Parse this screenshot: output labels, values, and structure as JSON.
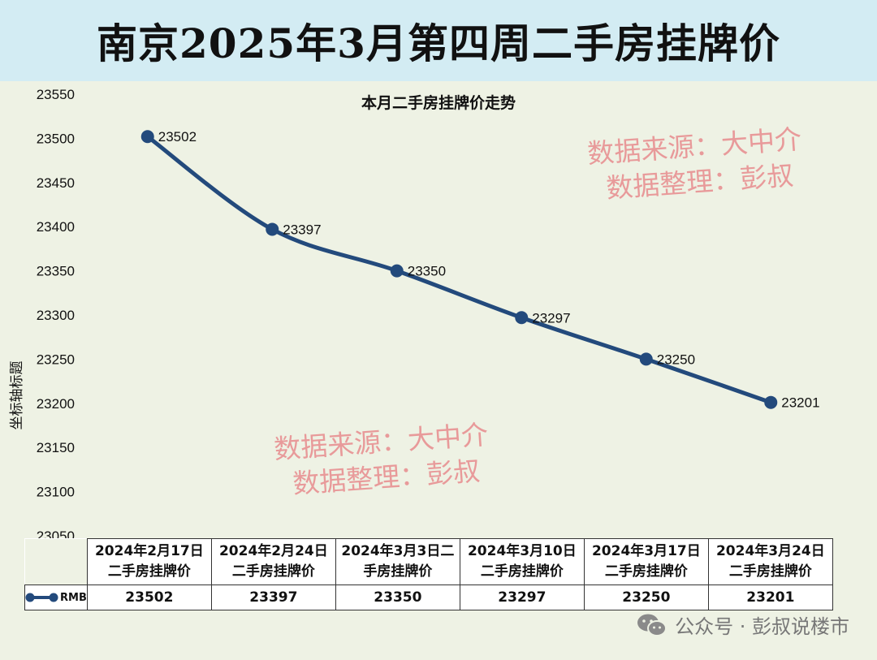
{
  "banner": {
    "title": "南京2025年3月第四周二手房挂牌价"
  },
  "watermark": {
    "line1": "数据来源：大中介",
    "line2": "数据整理：彭叔"
  },
  "footer": {
    "text": "公众号 · 彭叔说楼市",
    "icon": "wechat-icon"
  },
  "colors": {
    "series": "#234a7c",
    "banner_bg": "#d3ecf3",
    "plot_bg": "#eef2e4",
    "watermark": "#e89a9a"
  },
  "chart_data": {
    "type": "line",
    "title": "本月二手房挂牌价走势",
    "ylabel": "坐标轴标题",
    "xlabel": "",
    "ylim": [
      23050,
      23550
    ],
    "y_ticks": [
      23550,
      23500,
      23450,
      23400,
      23350,
      23300,
      23250,
      23200,
      23150,
      23100,
      23050
    ],
    "categories": [
      "2024年2月17日二手房挂牌价",
      "2024年2月24日二手房挂牌价",
      "2024年3月3日二手房挂牌价",
      "2024年3月10日二手房挂牌价",
      "2024年3月17日二手房挂牌价",
      "2024年3月24日二手房挂牌价"
    ],
    "category_lines": [
      [
        "2024年2月17日",
        "二手房挂牌价"
      ],
      [
        "2024年2月24日",
        "二手房挂牌价"
      ],
      [
        "2024年3月3日二",
        "手房挂牌价"
      ],
      [
        "2024年3月10日",
        "二手房挂牌价"
      ],
      [
        "2024年3月17日",
        "二手房挂牌价"
      ],
      [
        "2024年3月24日",
        "二手房挂牌价"
      ]
    ],
    "series": [
      {
        "name": "RMB",
        "values": [
          23502,
          23397,
          23350,
          23297,
          23250,
          23201
        ]
      }
    ],
    "data_labels": true,
    "smooth": true,
    "grid": false,
    "legend": "data-table"
  }
}
